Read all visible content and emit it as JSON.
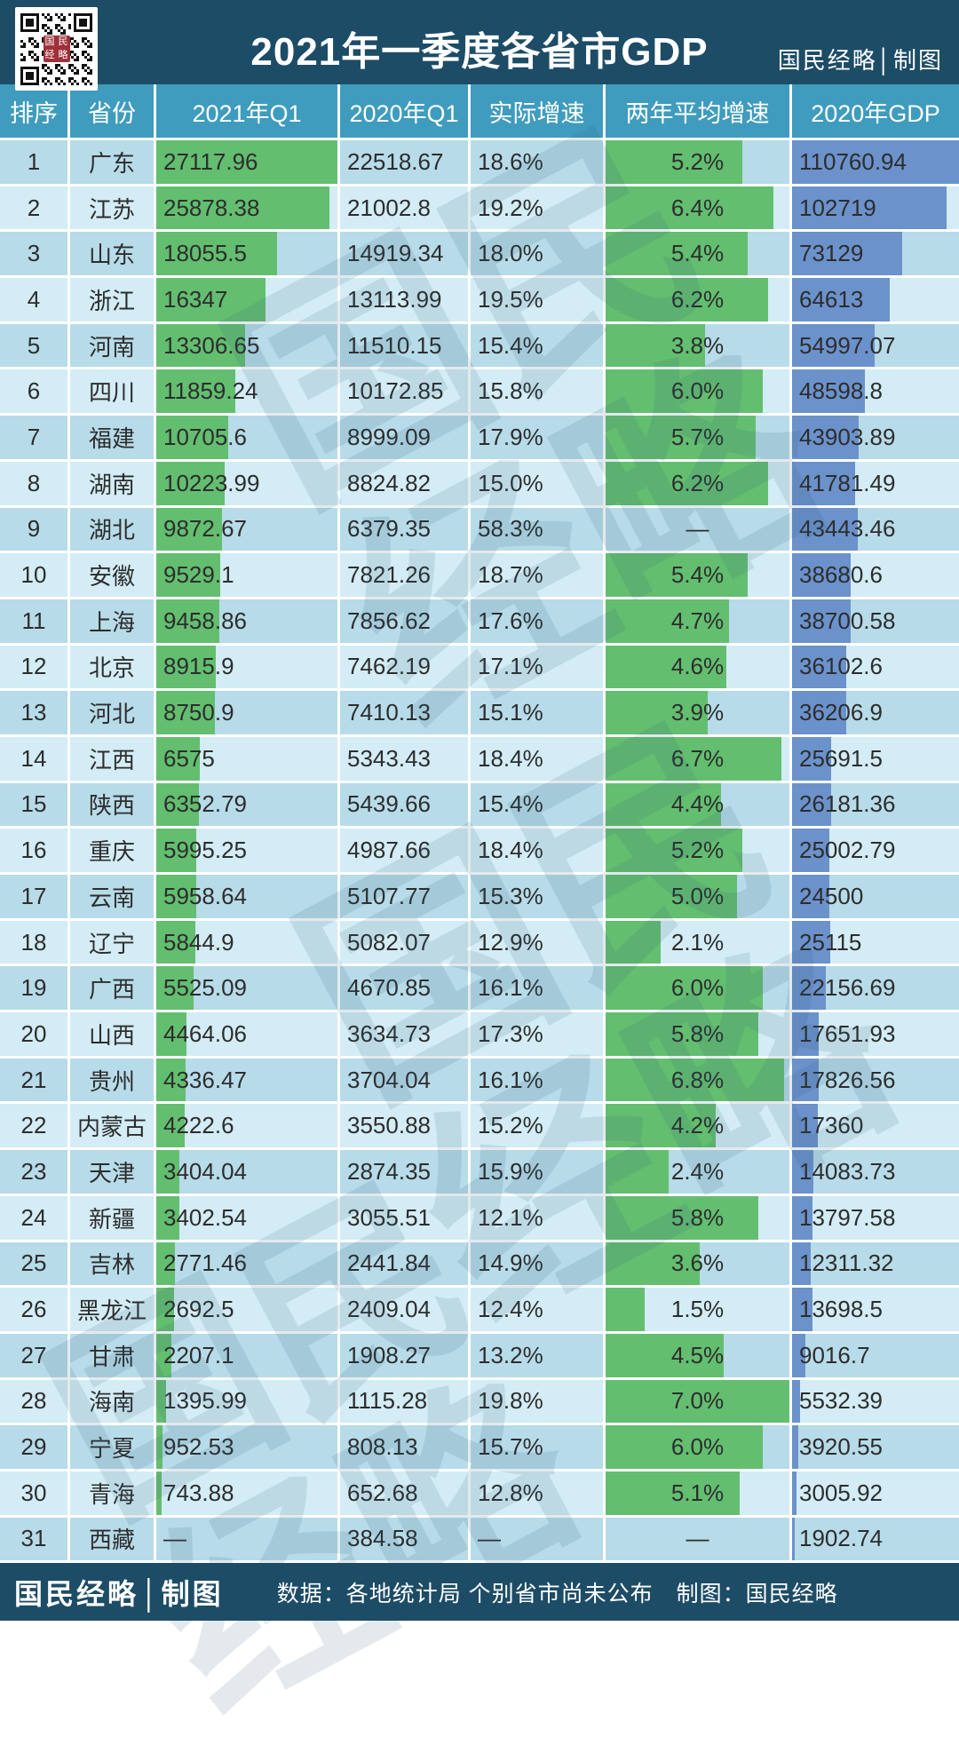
{
  "header": {
    "credit": "国民经略│制图",
    "qr_seal": "国民经略"
  },
  "watermark": {
    "text": "国民经略"
  },
  "footer": {
    "brand": "国民经略│制图",
    "note": "数据：各地统计局 个别省市尚未公布　制图：国民经略"
  },
  "colors": {
    "navy": "#1d4c66",
    "colhead": "#3f9cbe",
    "rowodd": "#b7dbe9",
    "roweven": "#d3ecf5",
    "green": "#63be70",
    "blue": "#6b92cb",
    "seal": "#9e3039",
    "wm": "#2f5d7c"
  },
  "chart_data": {
    "type": "table",
    "title": "2021年一季度各省市GDP",
    "columns": [
      "排序",
      "省份",
      "2021年Q1",
      "2020年Q1",
      "实际增速",
      "两年平均增速",
      "2020年GDP"
    ],
    "bar_max": {
      "q1_2021": 27117.96,
      "avg_growth": 7.0,
      "gdp_2020": 110760.94
    },
    "bar_columns": {
      "q1_2021": "green",
      "avg_growth": "green",
      "gdp_2020": "blue"
    },
    "rows": [
      [
        "1",
        "广东",
        "27117.96",
        "22518.67",
        "18.6%",
        "5.2%",
        "110760.94"
      ],
      [
        "2",
        "江苏",
        "25878.38",
        "21002.8",
        "19.2%",
        "6.4%",
        "102719"
      ],
      [
        "3",
        "山东",
        "18055.5",
        "14919.34",
        "18.0%",
        "5.4%",
        "73129"
      ],
      [
        "4",
        "浙江",
        "16347",
        "13113.99",
        "19.5%",
        "6.2%",
        "64613"
      ],
      [
        "5",
        "河南",
        "13306.65",
        "11510.15",
        "15.4%",
        "3.8%",
        "54997.07"
      ],
      [
        "6",
        "四川",
        "11859.24",
        "10172.85",
        "15.8%",
        "6.0%",
        "48598.8"
      ],
      [
        "7",
        "福建",
        "10705.6",
        "8999.09",
        "17.9%",
        "5.7%",
        "43903.89"
      ],
      [
        "8",
        "湖南",
        "10223.99",
        "8824.82",
        "15.0%",
        "6.2%",
        "41781.49"
      ],
      [
        "9",
        "湖北",
        "9872.67",
        "6379.35",
        "58.3%",
        "—",
        "43443.46"
      ],
      [
        "10",
        "安徽",
        "9529.1",
        "7821.26",
        "18.7%",
        "5.4%",
        "38680.6"
      ],
      [
        "11",
        "上海",
        "9458.86",
        "7856.62",
        "17.6%",
        "4.7%",
        "38700.58"
      ],
      [
        "12",
        "北京",
        "8915.9",
        "7462.19",
        "17.1%",
        "4.6%",
        "36102.6"
      ],
      [
        "13",
        "河北",
        "8750.9",
        "7410.13",
        "15.1%",
        "3.9%",
        "36206.9"
      ],
      [
        "14",
        "江西",
        "6575",
        "5343.43",
        "18.4%",
        "6.7%",
        "25691.5"
      ],
      [
        "15",
        "陕西",
        "6352.79",
        "5439.66",
        "15.4%",
        "4.4%",
        "26181.36"
      ],
      [
        "16",
        "重庆",
        "5995.25",
        "4987.66",
        "18.4%",
        "5.2%",
        "25002.79"
      ],
      [
        "17",
        "云南",
        "5958.64",
        "5107.77",
        "15.3%",
        "5.0%",
        "24500"
      ],
      [
        "18",
        "辽宁",
        "5844.9",
        "5082.07",
        "12.9%",
        "2.1%",
        "25115"
      ],
      [
        "19",
        "广西",
        "5525.09",
        "4670.85",
        "16.1%",
        "6.0%",
        "22156.69"
      ],
      [
        "20",
        "山西",
        "4464.06",
        "3634.73",
        "17.3%",
        "5.8%",
        "17651.93"
      ],
      [
        "21",
        "贵州",
        "4336.47",
        "3704.04",
        "16.1%",
        "6.8%",
        "17826.56"
      ],
      [
        "22",
        "内蒙古",
        "4222.6",
        "3550.88",
        "15.2%",
        "4.2%",
        "17360"
      ],
      [
        "23",
        "天津",
        "3404.04",
        "2874.35",
        "15.9%",
        "2.4%",
        "14083.73"
      ],
      [
        "24",
        "新疆",
        "3402.54",
        "3055.51",
        "12.1%",
        "5.8%",
        "13797.58"
      ],
      [
        "25",
        "吉林",
        "2771.46",
        "2441.84",
        "14.9%",
        "3.6%",
        "12311.32"
      ],
      [
        "26",
        "黑龙江",
        "2692.5",
        "2409.04",
        "12.4%",
        "1.5%",
        "13698.5"
      ],
      [
        "27",
        "甘肃",
        "2207.1",
        "1908.27",
        "13.2%",
        "4.5%",
        "9016.7"
      ],
      [
        "28",
        "海南",
        "1395.99",
        "1115.28",
        "19.8%",
        "7.0%",
        "5532.39"
      ],
      [
        "29",
        "宁夏",
        "952.53",
        "808.13",
        "15.7%",
        "6.0%",
        "3920.55"
      ],
      [
        "30",
        "青海",
        "743.88",
        "652.68",
        "12.8%",
        "5.1%",
        "3005.92"
      ],
      [
        "31",
        "西藏",
        "—",
        "384.58",
        "—",
        "—",
        "1902.74"
      ]
    ]
  }
}
